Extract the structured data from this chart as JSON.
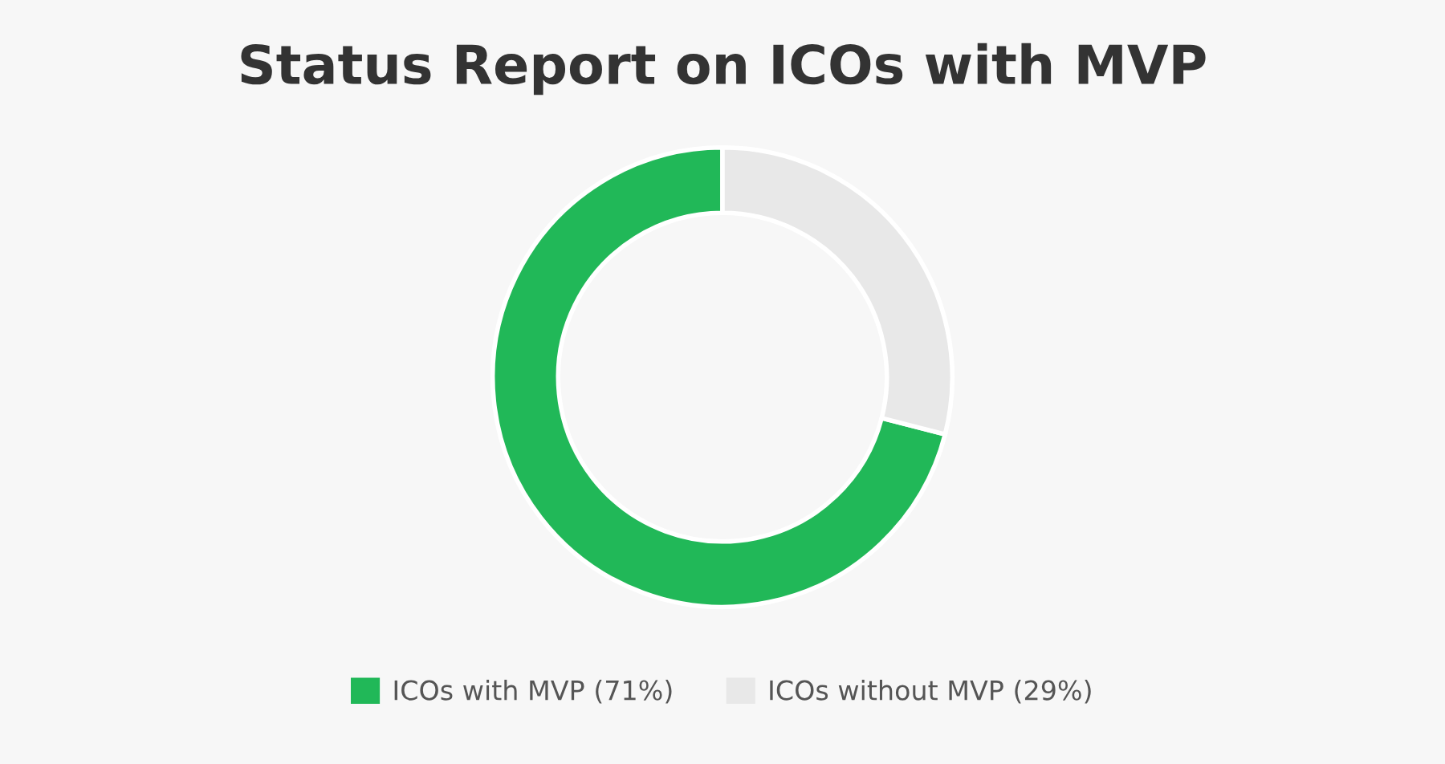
{
  "chart_data": {
    "type": "donut",
    "title": "Status Report on ICOs with MVP",
    "categories": [
      "ICOs with MVP (71%)",
      "ICOs without MVP (29%)"
    ],
    "values": [
      71,
      29
    ],
    "colors": [
      "#21b858",
      "#e8e8e8"
    ],
    "legend": "bottom"
  }
}
